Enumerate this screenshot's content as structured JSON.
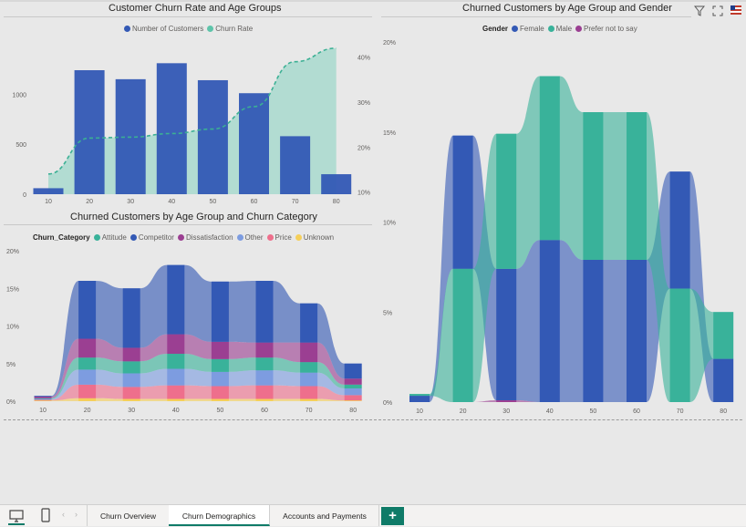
{
  "colors": {
    "female_blue": "#3359b5",
    "male_teal": "#39b29a",
    "churn_rate_area": "#a8d9ce",
    "attitude": "#39b29a",
    "competitor": "#3359b5",
    "dissatisfaction": "#9b3f92",
    "other": "#7d9ce0",
    "price": "#ee6f8c",
    "unknown": "#f5cf5a",
    "accent_green": "#0f7b68"
  },
  "chart1": {
    "title": "Customer Churn Rate and Age Groups",
    "legend": [
      {
        "label": "Number of Customers",
        "color": "#3359b5"
      },
      {
        "label": "Churn Rate",
        "color": "#5ec4aa"
      }
    ],
    "y_ticks": [
      "0",
      "500",
      "1000"
    ],
    "y2_ticks": [
      "10%",
      "20%",
      "30%",
      "40%"
    ],
    "x_ticks": [
      "10",
      "20",
      "30",
      "40",
      "50",
      "60",
      "70",
      "80"
    ]
  },
  "chart2": {
    "title": "Churned Customers by Age Group and Churn Category",
    "legend_title": "Churn_Category",
    "legend": [
      {
        "label": "Attitude",
        "color": "#39b29a"
      },
      {
        "label": "Competitor",
        "color": "#3359b5"
      },
      {
        "label": "Dissatisfaction",
        "color": "#9b3f92"
      },
      {
        "label": "Other",
        "color": "#7d9ce0"
      },
      {
        "label": "Price",
        "color": "#ee6f8c"
      },
      {
        "label": "Unknown",
        "color": "#f5cf5a"
      }
    ],
    "y_ticks": [
      "0%",
      "5%",
      "10%",
      "15%",
      "20%"
    ],
    "x_ticks": [
      "10",
      "20",
      "30",
      "40",
      "50",
      "60",
      "70",
      "80"
    ]
  },
  "chart3": {
    "title": "Churned Customers by Age Group and Gender",
    "legend_title": "Gender",
    "legend": [
      {
        "label": "Female",
        "color": "#3359b5"
      },
      {
        "label": "Male",
        "color": "#39b29a"
      },
      {
        "label": "Prefer not to say",
        "color": "#9b3f92"
      }
    ],
    "y_ticks": [
      "0%",
      "5%",
      "10%",
      "15%",
      "20%"
    ],
    "x_ticks": [
      "10",
      "20",
      "30",
      "40",
      "50",
      "60",
      "70",
      "80"
    ]
  },
  "chart_data": [
    {
      "type": "bar",
      "title": "Customer Churn Rate and Age Groups",
      "categories": [
        "10",
        "20",
        "30",
        "40",
        "50",
        "60",
        "70",
        "80"
      ],
      "series": [
        {
          "name": "Number of Customers",
          "type": "bar",
          "axis": "left",
          "values": [
            60,
            1240,
            1150,
            1310,
            1140,
            1010,
            580,
            200
          ]
        },
        {
          "name": "Churn Rate",
          "type": "area",
          "axis": "right",
          "values": [
            14,
            22,
            22.2,
            23,
            24,
            29,
            39,
            42
          ]
        }
      ],
      "ylim": [
        0,
        1550
      ],
      "y2lim": [
        9.5,
        44
      ],
      "legend": "top"
    },
    {
      "type": "bar",
      "title": "Churned Customers by Age Group and Churn Category",
      "stacked": true,
      "categories": [
        "10",
        "20",
        "30",
        "40",
        "50",
        "60",
        "70",
        "80"
      ],
      "series": [
        {
          "name": "Unknown",
          "values": [
            0.1,
            0.4,
            0.3,
            0.3,
            0.3,
            0.3,
            0.3,
            0.1
          ]
        },
        {
          "name": "Price",
          "values": [
            0.1,
            1.8,
            1.6,
            1.8,
            1.7,
            1.8,
            1.7,
            0.7
          ]
        },
        {
          "name": "Other",
          "values": [
            0.1,
            2.0,
            1.8,
            2.2,
            1.9,
            2.0,
            1.8,
            0.9
          ]
        },
        {
          "name": "Attitude",
          "values": [
            0.1,
            1.6,
            1.6,
            2.0,
            1.7,
            1.7,
            1.4,
            0.5
          ]
        },
        {
          "name": "Dissatisfaction",
          "values": [
            0.2,
            2.5,
            1.8,
            2.6,
            2.3,
            2.0,
            2.6,
            0.8
          ]
        },
        {
          "name": "Competitor",
          "values": [
            0.1,
            7.7,
            7.9,
            9.2,
            8.0,
            8.2,
            5.2,
            2.0
          ]
        }
      ],
      "ylim": [
        0,
        20
      ],
      "legend": "top"
    },
    {
      "type": "bar",
      "title": "Churned Customers by Age Group and Gender",
      "stacked": true,
      "categories": [
        "10",
        "20",
        "30",
        "40",
        "50",
        "60",
        "70",
        "80"
      ],
      "series": [
        {
          "name": "Prefer not to say",
          "values": [
            0,
            0,
            0.1,
            0,
            0,
            0,
            0,
            0
          ]
        },
        {
          "name": "Female",
          "values": [
            0.35,
            7.4,
            7.3,
            9.0,
            7.9,
            7.9,
            0,
            2.4
          ]
        },
        {
          "name": "Male",
          "values": [
            0.1,
            7.4,
            7.5,
            9.1,
            8.2,
            8.2,
            6.3,
            2.6
          ]
        }
      ],
      "extra_female_top_70": 6.5,
      "ylim": [
        0,
        20
      ],
      "legend": "top"
    }
  ],
  "tabs": [
    {
      "label": "Churn Overview"
    },
    {
      "label": "Churn Demographics"
    },
    {
      "label": "Accounts and Payments"
    }
  ],
  "add_page_label": "+"
}
